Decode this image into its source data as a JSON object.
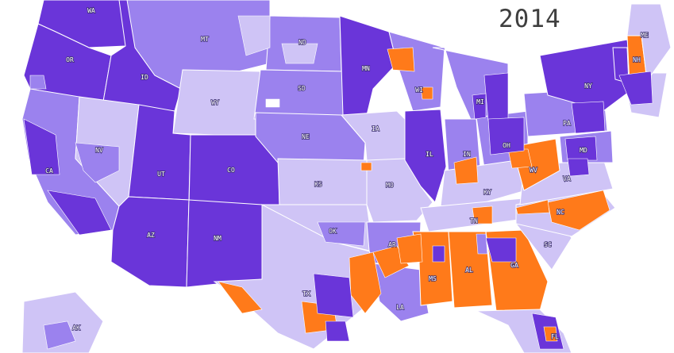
{
  "map": {
    "year": "2014",
    "colors": {
      "dark_purple": "#6a35d9",
      "medium_purple": "#9b82ee",
      "light_purple": "#cfc4f6",
      "orange": "#ff7a1a",
      "white": "#ffffff"
    },
    "state_labels": [
      "WA",
      "MT",
      "ND",
      "MN",
      "ME",
      "OR",
      "ID",
      "WY",
      "SD",
      "WI",
      "MI",
      "NY",
      "NH",
      "NV",
      "CA",
      "UT",
      "CO",
      "NE",
      "IA",
      "IL",
      "IN",
      "OH",
      "PA",
      "MD",
      "KS",
      "MO",
      "KY",
      "WV",
      "VA",
      "AZ",
      "NM",
      "OK",
      "AR",
      "TN",
      "NC",
      "SC",
      "TX",
      "MS",
      "AL",
      "GA",
      "LA",
      "FL",
      "AK"
    ]
  }
}
